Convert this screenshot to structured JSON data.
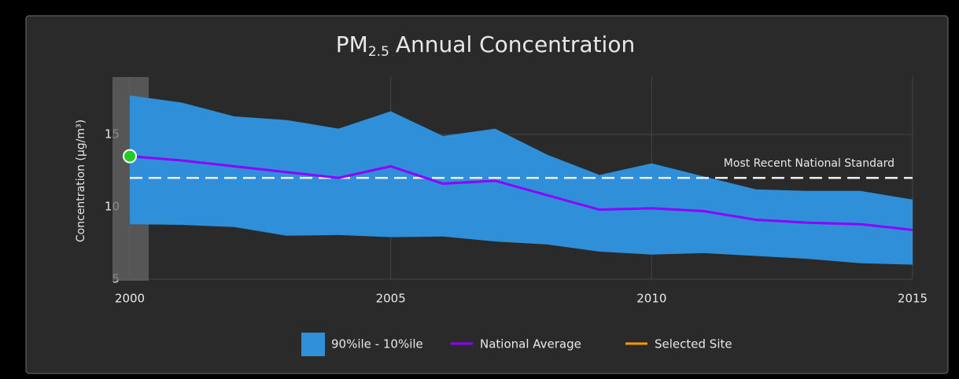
{
  "chart_data": {
    "type": "band-line",
    "title": {
      "prefix": "PM",
      "subscript": "2.5",
      "suffix": "Annual Concentration"
    },
    "y_label": "Concentration (µg/m³)",
    "x": [
      2000,
      2001,
      2002,
      2003,
      2004,
      2005,
      2006,
      2007,
      2008,
      2009,
      2010,
      2011,
      2012,
      2013,
      2014,
      2015
    ],
    "xlim": [
      2000,
      2015
    ],
    "xticks": [
      2000,
      2005,
      2010,
      2015
    ],
    "ylim": [
      5,
      19
    ],
    "yticks": [
      5,
      10,
      15
    ],
    "grid": true,
    "band": {
      "name": "90%ile - 10%ile",
      "color": "#2f8fd8",
      "upper": [
        17.7,
        17.2,
        16.25,
        16.0,
        15.4,
        16.6,
        14.9,
        15.4,
        13.6,
        12.2,
        13.0,
        12.1,
        11.2,
        11.1,
        11.1,
        10.5
      ],
      "lower": [
        8.8,
        8.75,
        8.6,
        8.0,
        8.05,
        7.9,
        7.95,
        7.6,
        7.4,
        6.9,
        6.7,
        6.8,
        6.6,
        6.4,
        6.1,
        6.0
      ]
    },
    "series": [
      {
        "name": "National Average",
        "color": "#8f00ff",
        "values": [
          13.5,
          13.2,
          12.8,
          12.4,
          12.0,
          12.8,
          11.6,
          11.8,
          10.8,
          9.8,
          9.9,
          9.7,
          9.1,
          8.9,
          8.8,
          8.4
        ]
      },
      {
        "name": "Selected Site",
        "color": "#ff9900",
        "values": [
          null,
          null,
          null,
          null,
          null,
          null,
          null,
          null,
          null,
          null,
          null,
          null,
          null,
          null,
          null,
          null
        ]
      }
    ],
    "standard": {
      "label": "Most Recent National Standard",
      "value": 12.0
    }
  }
}
